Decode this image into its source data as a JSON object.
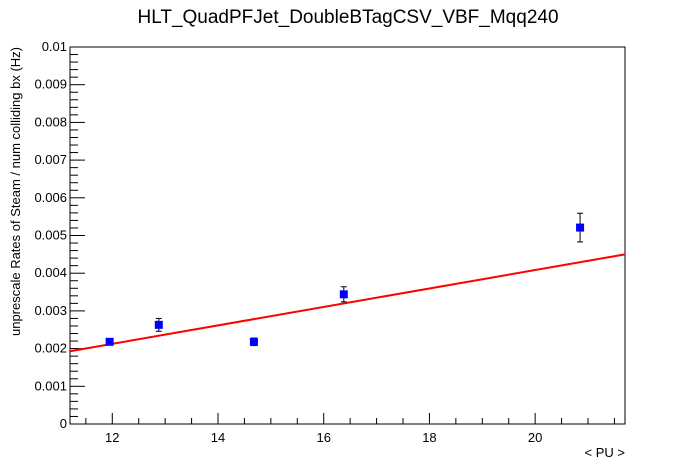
{
  "chart_data": {
    "type": "scatter",
    "title": "HLT_QuadPFJet_DoubleBTagCSV_VBF_Mqq240",
    "xlabel": "< PU >",
    "ylabel": "unprescale Rates of Steam / num colliding bx (Hz)",
    "xlim": [
      11.2,
      21.7
    ],
    "ylim": [
      0,
      0.01
    ],
    "x_ticks": [
      "12",
      "14",
      "16",
      "18",
      "20"
    ],
    "y_ticks": [
      "0",
      "0.001",
      "0.002",
      "0.003",
      "0.004",
      "0.005",
      "0.006",
      "0.007",
      "0.008",
      "0.009",
      "0.01"
    ],
    "grid": false,
    "series": [
      {
        "type": "scatter",
        "color": "#0000ff",
        "points": [
          {
            "x": 11.95,
            "y": 0.00218,
            "err": 6e-05
          },
          {
            "x": 12.88,
            "y": 0.00263,
            "err": 0.00017
          },
          {
            "x": 14.68,
            "y": 0.00218,
            "err": 0.0001
          },
          {
            "x": 16.38,
            "y": 0.00344,
            "err": 0.0002
          },
          {
            "x": 20.85,
            "y": 0.00521,
            "err": 0.00038
          }
        ]
      },
      {
        "type": "line",
        "color": "#ff0000",
        "x": [
          11.2,
          21.7
        ],
        "y": [
          0.00193,
          0.0045
        ]
      }
    ]
  }
}
